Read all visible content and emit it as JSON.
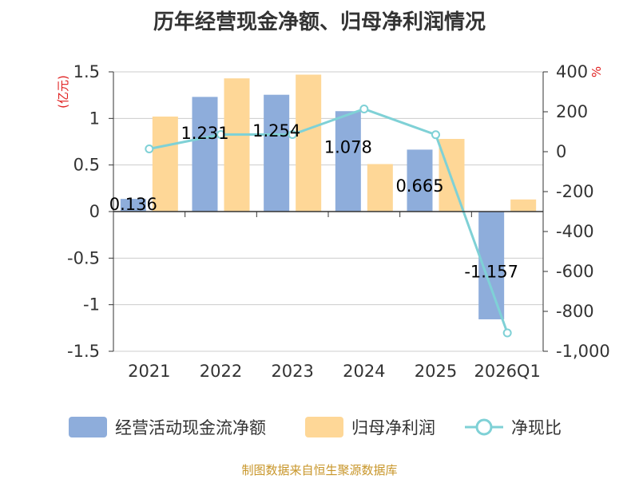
{
  "chart_data": {
    "type": "bar",
    "title": "历年经营现金净额、归母净利润情况",
    "categories": [
      "2021",
      "2022",
      "2023",
      "2024",
      "2025",
      "2026Q1"
    ],
    "series": [
      {
        "name": "经营活动现金流净额",
        "axis": "left",
        "kind": "bar",
        "color": "#8eaddb",
        "values": [
          0.136,
          1.231,
          1.254,
          1.078,
          0.665,
          -1.157
        ],
        "labels": [
          "0.136",
          "1.231",
          "1.254",
          "1.078",
          "0.665",
          "-1.157"
        ]
      },
      {
        "name": "归母净利润",
        "axis": "left",
        "kind": "bar",
        "color": "#fed797",
        "values": [
          1.02,
          1.43,
          1.47,
          0.51,
          0.78,
          0.13
        ]
      },
      {
        "name": "净现比",
        "axis": "right",
        "kind": "line",
        "color": "#7fd1d6",
        "values": [
          14,
          86,
          86,
          214,
          85,
          -908
        ]
      }
    ],
    "left_axis": {
      "label": "(亿元)",
      "ylim": [
        -1.5,
        1.5
      ],
      "ticks": [
        "1.5",
        "1",
        "0.5",
        "0",
        "-0.5",
        "-1",
        "-1.5"
      ],
      "tick_values": [
        1.5,
        1,
        0.5,
        0,
        -0.5,
        -1,
        -1.5
      ]
    },
    "right_axis": {
      "label": "%",
      "ylim": [
        -1000,
        400
      ],
      "ticks": [
        "400",
        "200",
        "0",
        "-200",
        "-400",
        "-600",
        "-800",
        "-1,000"
      ],
      "tick_values": [
        400,
        200,
        0,
        -200,
        -400,
        -600,
        -800,
        -1000
      ]
    },
    "grid": true,
    "legend": "bottom"
  },
  "source": "制图数据来自恒生聚源数据库"
}
